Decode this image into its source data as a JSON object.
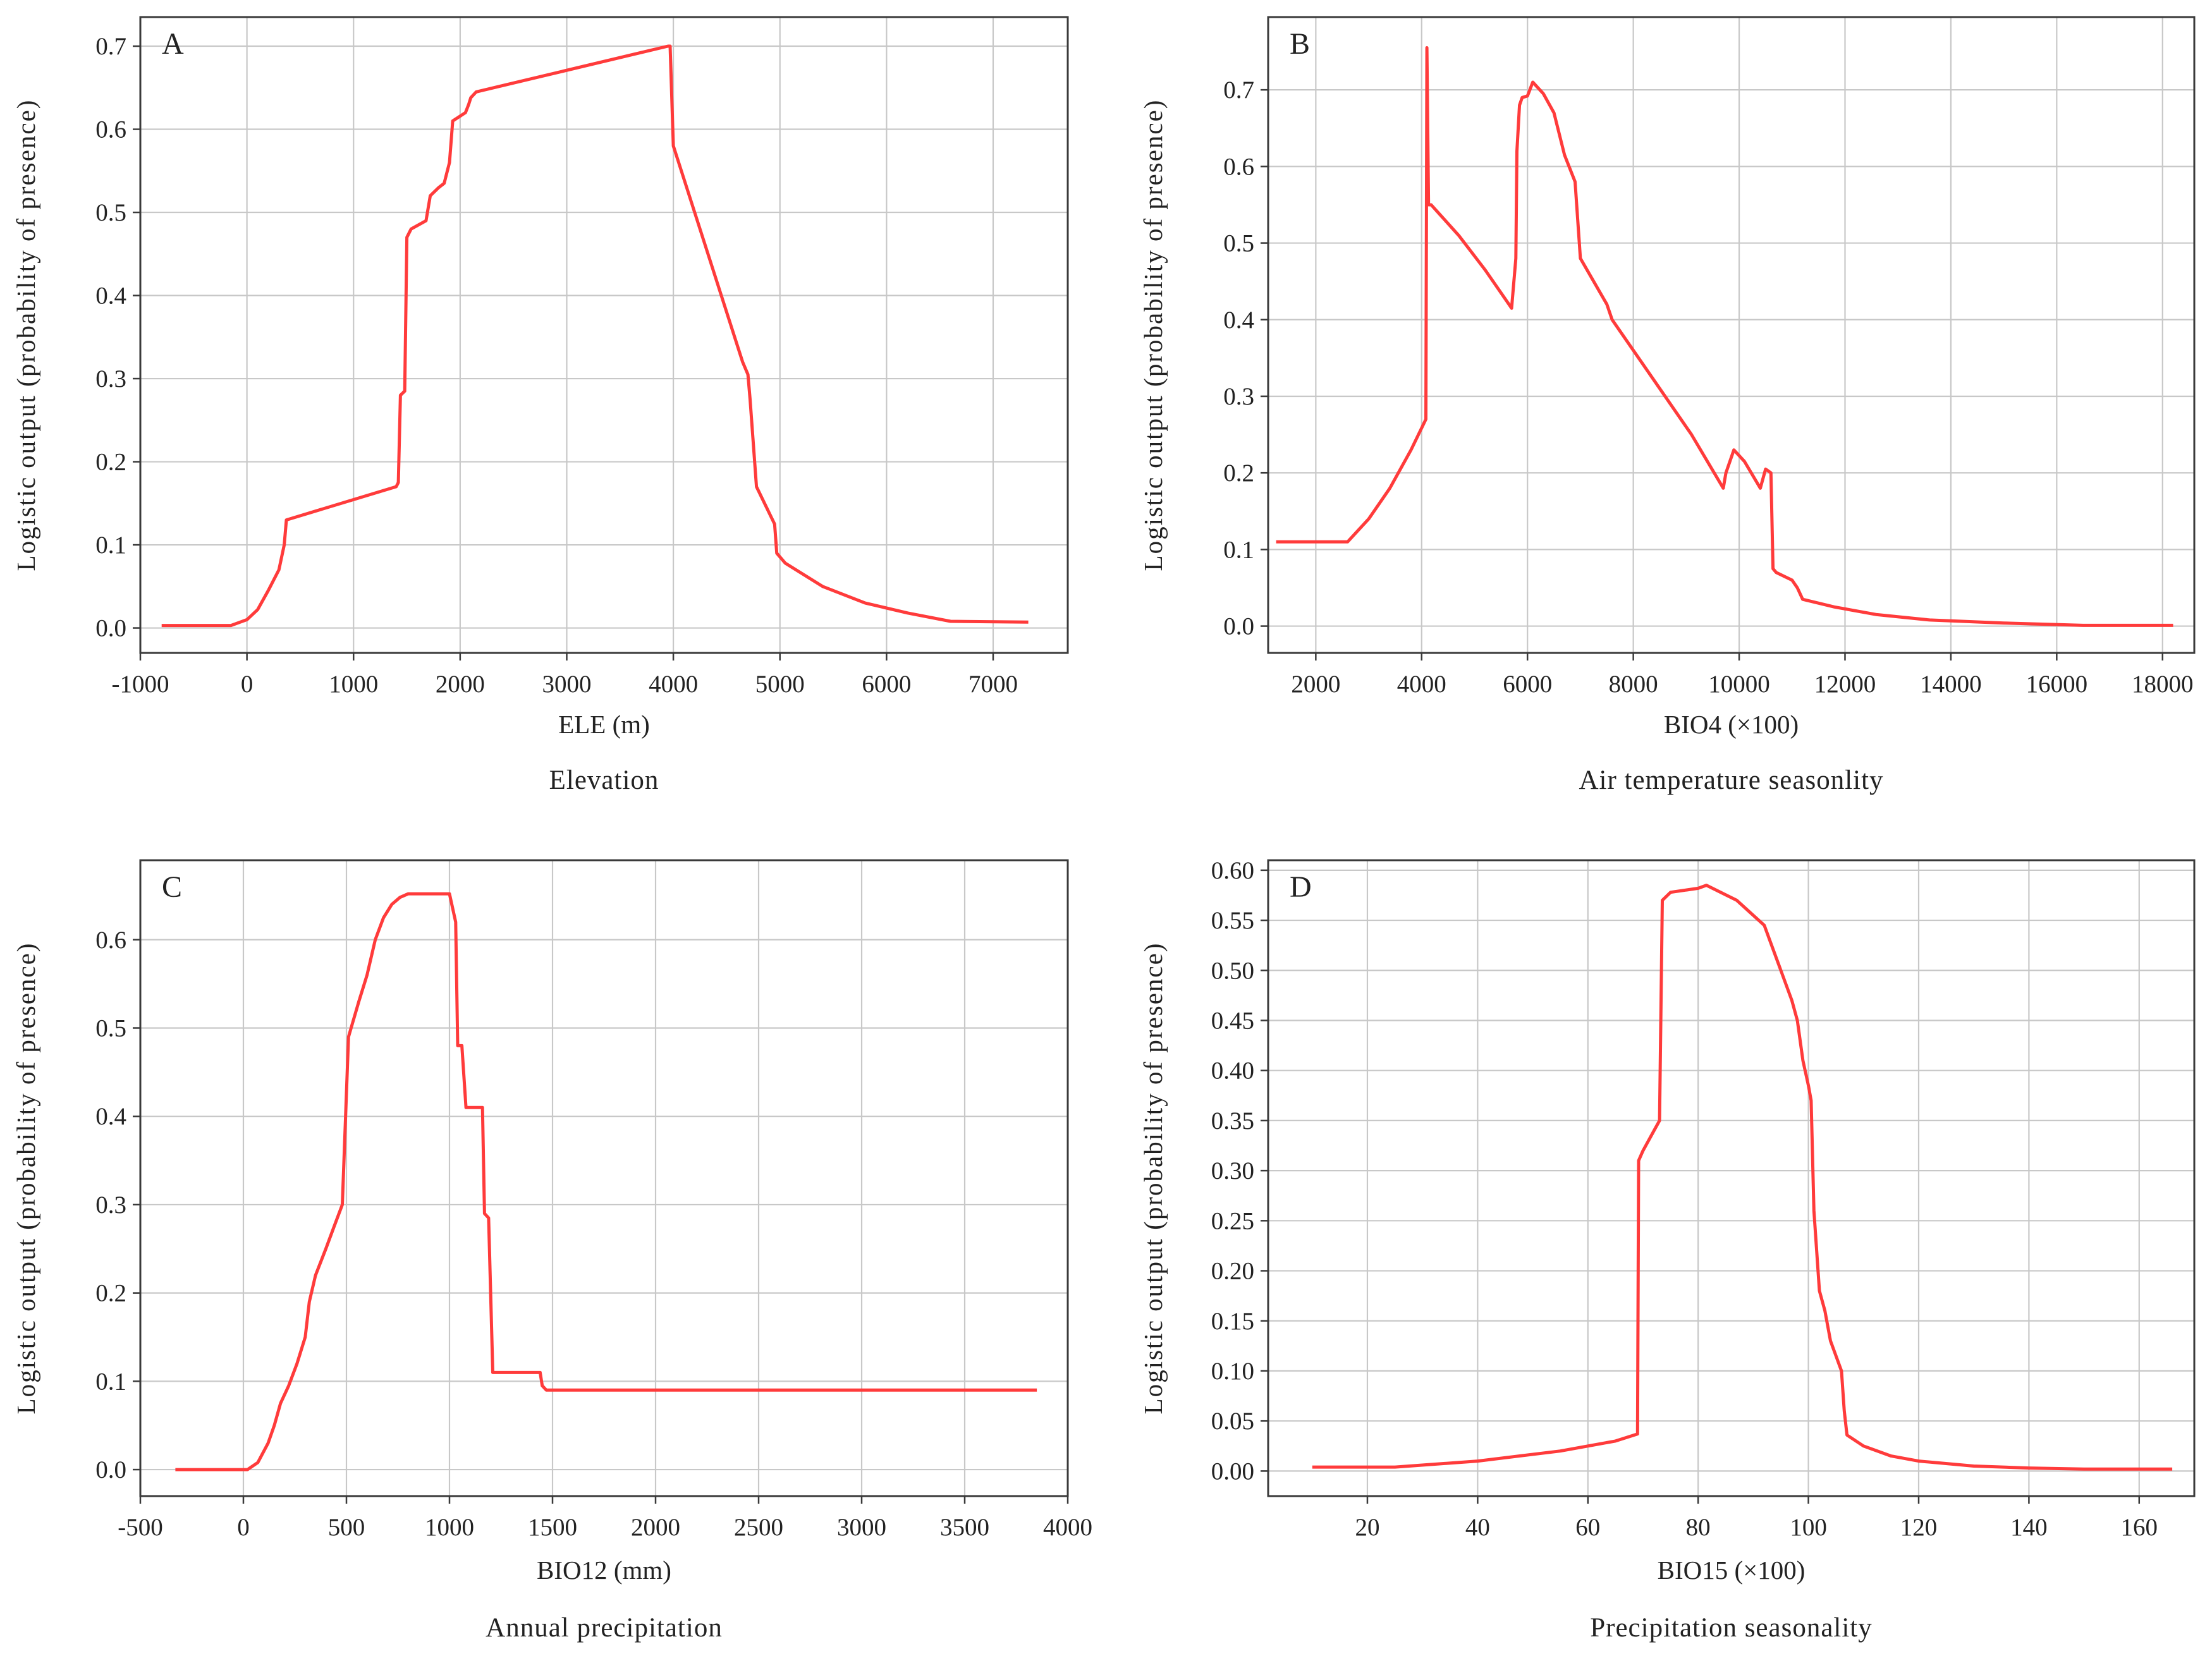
{
  "figure": {
    "line_color": "#ff3b3b",
    "grid_color": "#c8c8c8"
  },
  "chart_data": [
    {
      "id": "A",
      "type": "line",
      "panel_label": "A",
      "title": "Elevation",
      "xlabel": "ELE (m)",
      "ylabel": "Logistic output (probability of presence)",
      "xlim": [
        -1000,
        7700
      ],
      "ylim": [
        -0.03,
        0.735
      ],
      "xticks": [
        -1000,
        0,
        1000,
        2000,
        3000,
        4000,
        5000,
        6000,
        7000
      ],
      "xtick_labels": [
        "-1000",
        "0",
        "1000",
        "2000",
        "3000",
        "4000",
        "5000",
        "6000",
        "7000"
      ],
      "yticks": [
        0.0,
        0.1,
        0.2,
        0.3,
        0.4,
        0.5,
        0.6,
        0.7
      ],
      "ytick_labels": [
        "0.0",
        "0.1",
        "0.2",
        "0.3",
        "0.4",
        "0.5",
        "0.6",
        "0.7"
      ],
      "x": [
        -800,
        -150,
        0,
        100,
        200,
        300,
        350,
        370,
        1400,
        1420,
        1440,
        1480,
        1500,
        1540,
        1680,
        1720,
        1800,
        1850,
        1900,
        1930,
        2050,
        2080,
        2100,
        2150,
        3950,
        3970,
        4000,
        4650,
        4700,
        4720,
        4780,
        4950,
        4970,
        5050,
        5400,
        5800,
        6200,
        6600,
        7330
      ],
      "y": [
        0.003,
        0.003,
        0.01,
        0.022,
        0.045,
        0.07,
        0.1,
        0.13,
        0.17,
        0.175,
        0.28,
        0.285,
        0.47,
        0.48,
        0.49,
        0.52,
        0.53,
        0.535,
        0.56,
        0.61,
        0.62,
        0.63,
        0.638,
        0.645,
        0.7,
        0.7,
        0.58,
        0.32,
        0.305,
        0.275,
        0.17,
        0.125,
        0.09,
        0.078,
        0.05,
        0.03,
        0.018,
        0.008,
        0.007
      ]
    },
    {
      "id": "B",
      "type": "line",
      "panel_label": "B",
      "title": "Air temperature seasonlity",
      "xlabel": "BIO4 (×100)",
      "ylabel": "Logistic output (probability of presence)",
      "xlim": [
        1100,
        18600
      ],
      "ylim": [
        -0.035,
        0.795
      ],
      "xticks": [
        2000,
        4000,
        6000,
        8000,
        10000,
        12000,
        14000,
        16000,
        18000
      ],
      "xtick_labels": [
        "2000",
        "4000",
        "6000",
        "8000",
        "10000",
        "12000",
        "14000",
        "16000",
        "18000"
      ],
      "yticks": [
        0.0,
        0.1,
        0.2,
        0.3,
        0.4,
        0.5,
        0.6,
        0.7
      ],
      "ytick_labels": [
        "0.0",
        "0.1",
        "0.2",
        "0.3",
        "0.4",
        "0.5",
        "0.6",
        "0.7"
      ],
      "x": [
        1250,
        2600,
        3000,
        3400,
        3800,
        4080,
        4100,
        4130,
        4180,
        4700,
        5200,
        5700,
        5780,
        5800,
        5850,
        5900,
        6000,
        6100,
        6300,
        6500,
        6700,
        6900,
        7000,
        7500,
        7600,
        7700,
        8400,
        9100,
        9700,
        9750,
        9900,
        10100,
        10400,
        10500,
        10600,
        10640,
        10700,
        11000,
        11100,
        11200,
        11800,
        12600,
        13600,
        15000,
        16500,
        18200
      ],
      "y": [
        0.11,
        0.11,
        0.14,
        0.18,
        0.23,
        0.27,
        0.755,
        0.55,
        0.55,
        0.51,
        0.465,
        0.415,
        0.48,
        0.62,
        0.68,
        0.69,
        0.692,
        0.71,
        0.695,
        0.67,
        0.615,
        0.58,
        0.48,
        0.42,
        0.4,
        0.39,
        0.32,
        0.25,
        0.18,
        0.2,
        0.23,
        0.215,
        0.18,
        0.205,
        0.2,
        0.075,
        0.07,
        0.06,
        0.05,
        0.035,
        0.025,
        0.015,
        0.008,
        0.004,
        0.001,
        0.001
      ]
    },
    {
      "id": "C",
      "type": "line",
      "panel_label": "C",
      "title": "Annual precipitation",
      "xlabel": "BIO12 (mm)",
      "ylabel": "Logistic output (probability of presence)",
      "xlim": [
        -500,
        4000
      ],
      "ylim": [
        -0.03,
        0.69
      ],
      "xticks": [
        -500,
        0,
        500,
        1000,
        1500,
        2000,
        2500,
        3000,
        3500,
        4000
      ],
      "xtick_labels": [
        "-500",
        "0",
        "500",
        "1000",
        "1500",
        "2000",
        "2500",
        "3000",
        "3500",
        "4000"
      ],
      "yticks": [
        0.0,
        0.1,
        0.2,
        0.3,
        0.4,
        0.5,
        0.6
      ],
      "ytick_labels": [
        "0.0",
        "0.1",
        "0.2",
        "0.3",
        "0.4",
        "0.5",
        "0.6"
      ],
      "x": [
        -330,
        20,
        70,
        120,
        150,
        180,
        220,
        260,
        300,
        320,
        350,
        400,
        440,
        480,
        510,
        560,
        600,
        640,
        680,
        720,
        760,
        800,
        1000,
        1030,
        1040,
        1060,
        1080,
        1160,
        1170,
        1190,
        1210,
        1440,
        1450,
        1470,
        3850
      ],
      "y": [
        0.0,
        0.0,
        0.008,
        0.03,
        0.05,
        0.075,
        0.095,
        0.12,
        0.15,
        0.19,
        0.22,
        0.25,
        0.275,
        0.3,
        0.49,
        0.53,
        0.56,
        0.6,
        0.625,
        0.64,
        0.648,
        0.652,
        0.652,
        0.62,
        0.48,
        0.48,
        0.41,
        0.41,
        0.29,
        0.285,
        0.11,
        0.11,
        0.095,
        0.09,
        0.09
      ]
    },
    {
      "id": "D",
      "type": "line",
      "panel_label": "D",
      "title": "Precipitation seasonality",
      "xlabel": "BIO15 (×100)",
      "ylabel": "Logistic output (probability of presence)",
      "xlim": [
        2,
        170
      ],
      "ylim": [
        -0.025,
        0.61
      ],
      "xticks": [
        20,
        40,
        60,
        80,
        100,
        120,
        140,
        160
      ],
      "xtick_labels": [
        "20",
        "40",
        "60",
        "80",
        "100",
        "120",
        "140",
        "160"
      ],
      "yticks": [
        0.0,
        0.05,
        0.1,
        0.15,
        0.2,
        0.25,
        0.3,
        0.35,
        0.4,
        0.45,
        0.5,
        0.55,
        0.6
      ],
      "ytick_labels": [
        "0.00",
        "0.05",
        "0.10",
        "0.15",
        "0.20",
        "0.25",
        "0.30",
        "0.35",
        "0.40",
        "0.45",
        "0.50",
        "0.55",
        "0.60"
      ],
      "x": [
        10,
        25,
        40,
        55,
        65,
        69,
        69.2,
        70,
        72,
        73,
        73.5,
        75,
        80,
        81.5,
        87,
        92,
        95,
        97,
        98,
        99,
        100,
        100.5,
        101,
        102,
        103,
        104,
        105,
        106,
        106.5,
        107,
        110,
        115,
        120,
        130,
        140,
        150,
        166
      ],
      "y": [
        0.004,
        0.004,
        0.01,
        0.02,
        0.03,
        0.037,
        0.31,
        0.32,
        0.34,
        0.35,
        0.57,
        0.578,
        0.582,
        0.585,
        0.57,
        0.545,
        0.5,
        0.47,
        0.45,
        0.41,
        0.385,
        0.37,
        0.26,
        0.18,
        0.16,
        0.13,
        0.115,
        0.1,
        0.06,
        0.036,
        0.025,
        0.015,
        0.01,
        0.005,
        0.003,
        0.002,
        0.002
      ]
    }
  ]
}
